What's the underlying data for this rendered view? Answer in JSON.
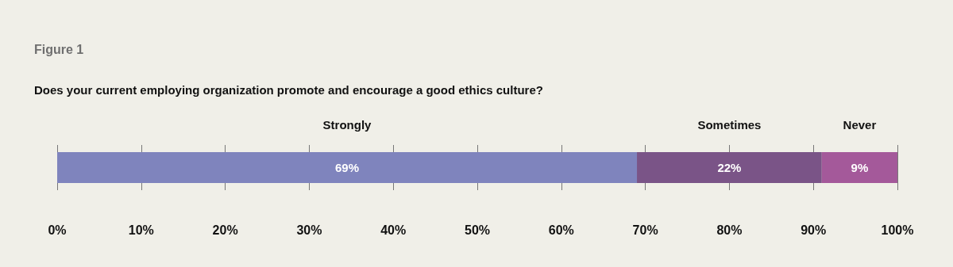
{
  "chart_data": {
    "type": "bar",
    "orientation": "horizontal",
    "stacked": true,
    "title": "Figure 1",
    "subtitle": "Does your current employing organization promote and encourage a good ethics culture?",
    "categories": [
      null
    ],
    "series": [
      {
        "name": "Strongly",
        "color": "#7f84bd",
        "values": [
          69
        ],
        "value_labels": [
          "69%"
        ]
      },
      {
        "name": "Sometimes",
        "color": "#7a5487",
        "values": [
          22
        ],
        "value_labels": [
          "22%"
        ]
      },
      {
        "name": "Never",
        "color": "#a4599a",
        "values": [
          9
        ],
        "value_labels": [
          "9%"
        ]
      }
    ],
    "xlim": [
      0,
      100
    ],
    "xticks": [
      {
        "value": 0,
        "label": "0%"
      },
      {
        "value": 10,
        "label": "10%"
      },
      {
        "value": 20,
        "label": "20%"
      },
      {
        "value": 30,
        "label": "30%"
      },
      {
        "value": 40,
        "label": "40%"
      },
      {
        "value": 50,
        "label": "50%"
      },
      {
        "value": 60,
        "label": "60%"
      },
      {
        "value": 70,
        "label": "70%"
      },
      {
        "value": 80,
        "label": "80%"
      },
      {
        "value": 90,
        "label": "90%"
      },
      {
        "value": 100,
        "label": "100%"
      }
    ],
    "grid": "x",
    "legend": false
  }
}
